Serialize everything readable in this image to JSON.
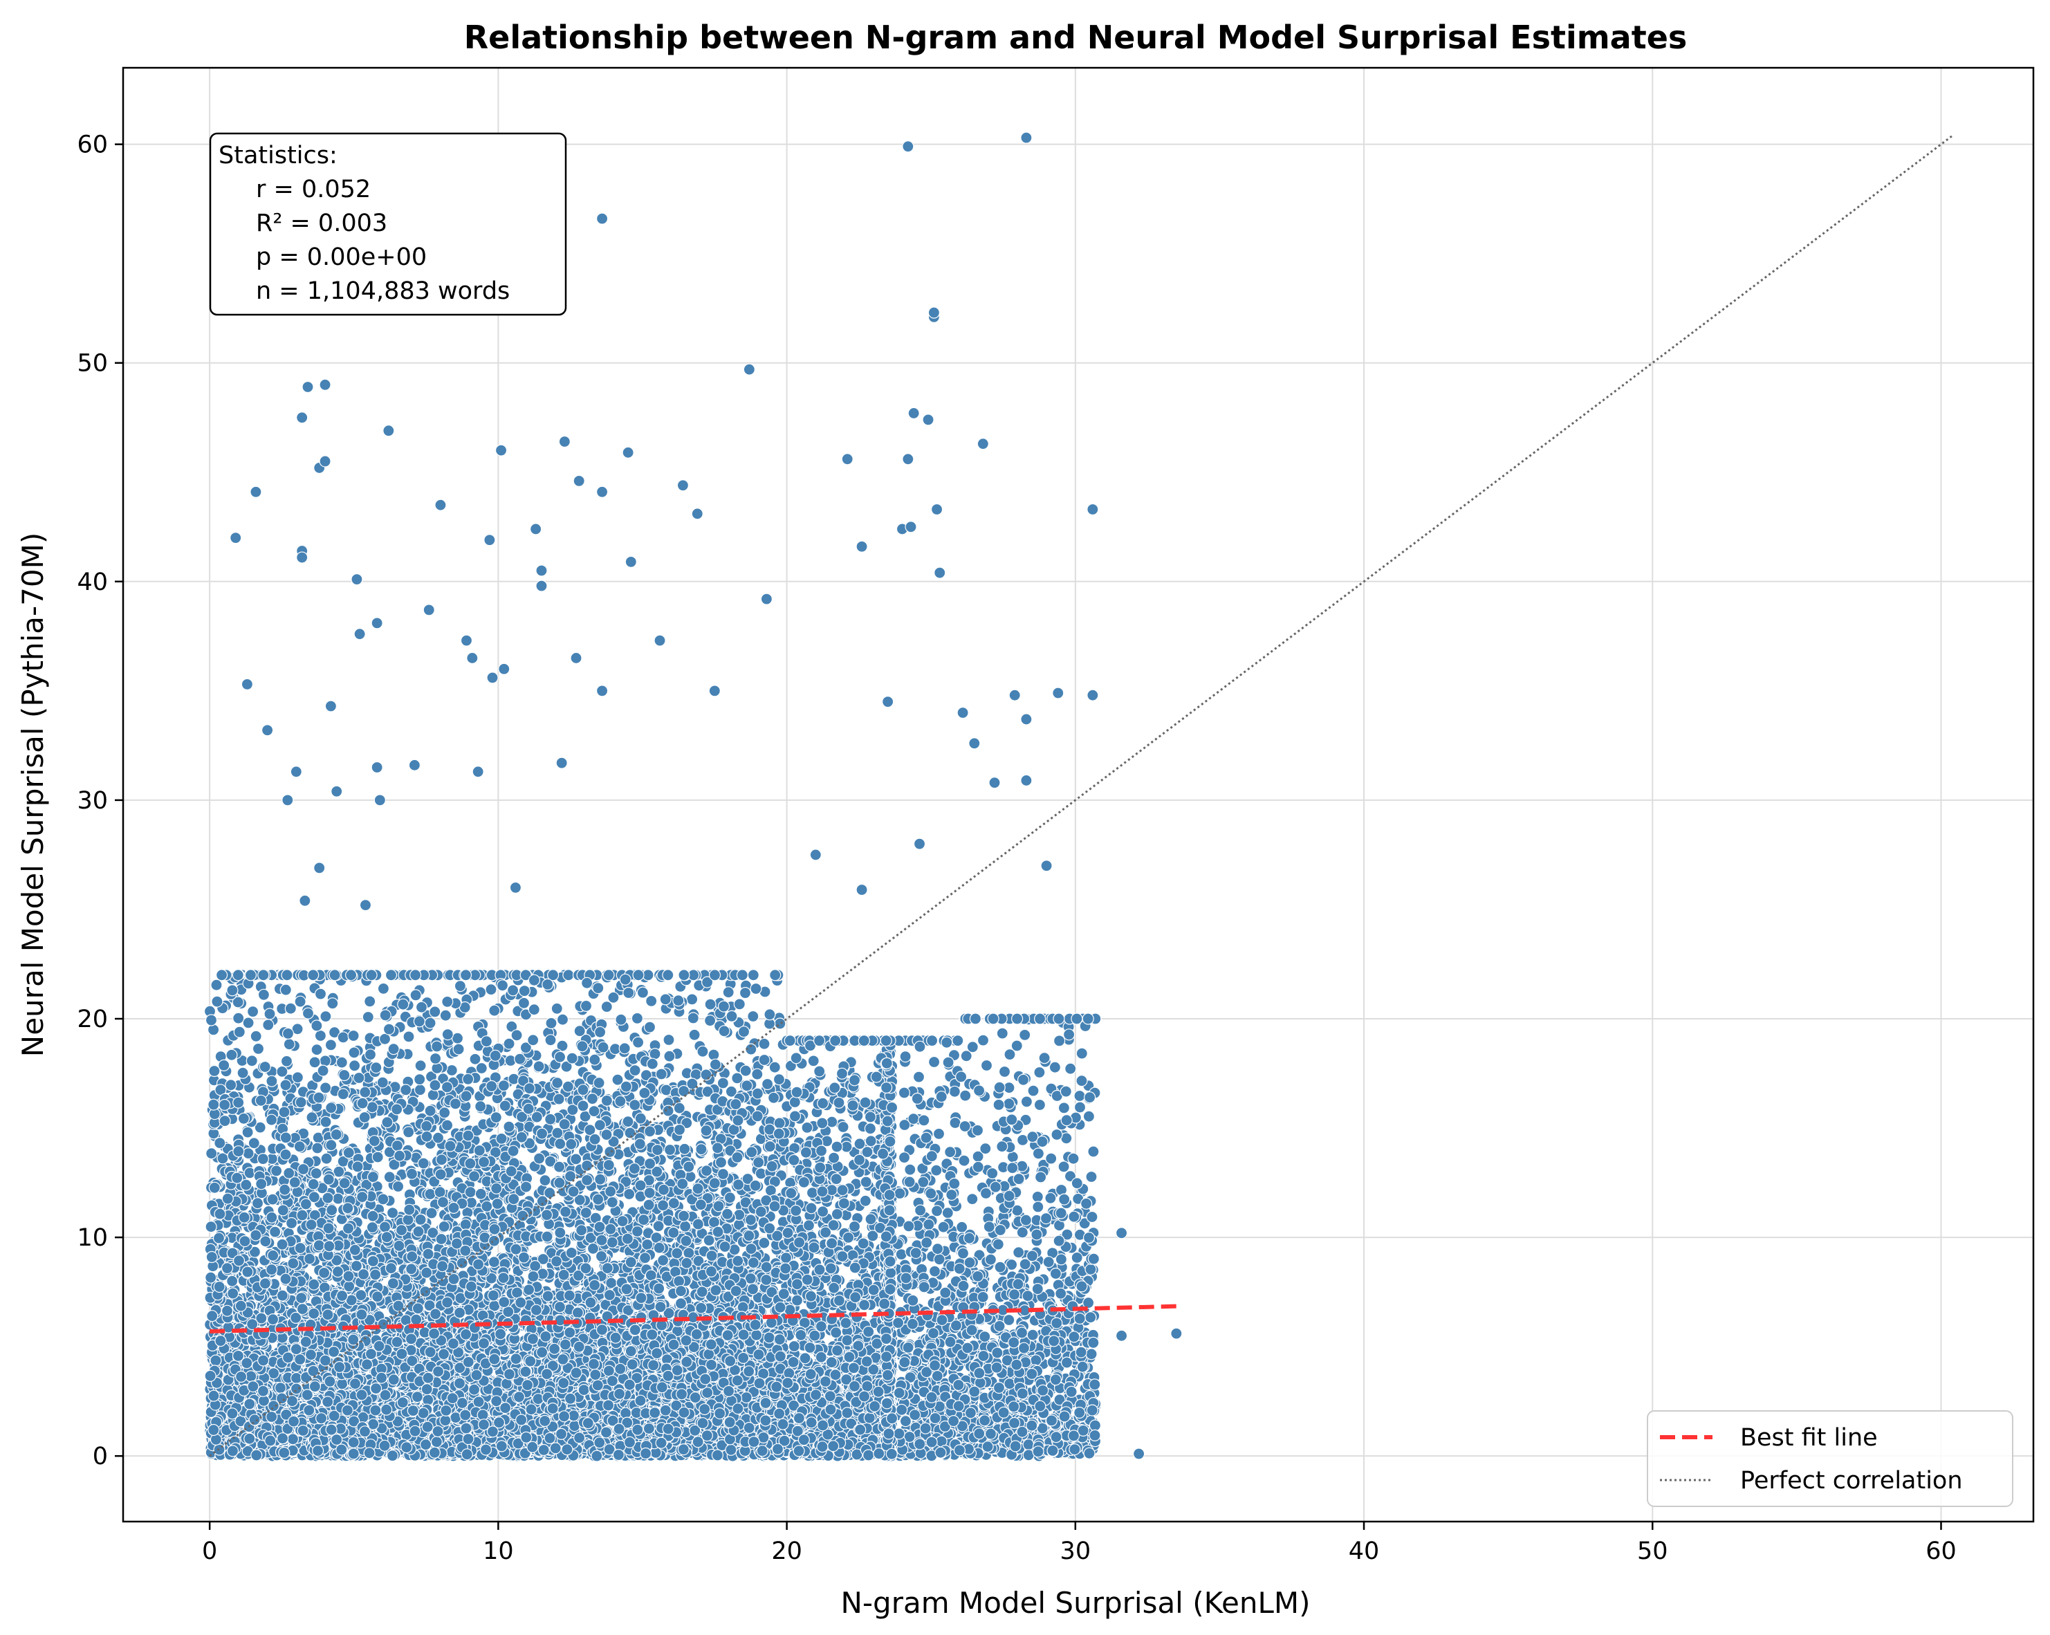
{
  "chart_data": {
    "type": "scatter",
    "title": "Relationship between N-gram and Neural Model Surprisal Estimates",
    "xlabel": "N-gram Model Surprisal (KenLM)",
    "ylabel": "Neural Model Surprisal (Pythia-70M)",
    "xlim": [
      -3,
      63.2
    ],
    "ylim": [
      -3,
      63.5
    ],
    "xticks": [
      0,
      10,
      20,
      30,
      40,
      50,
      60
    ],
    "yticks": [
      0,
      10,
      20,
      30,
      40,
      50,
      60
    ],
    "grid": true,
    "point_color": "#4682b4",
    "stats_box": {
      "header": "Statistics:",
      "lines": [
        "r = 0.052",
        "R² = 0.003",
        "p = 0.00e+00",
        "n = 1,104,883 words"
      ]
    },
    "series": [
      {
        "name": "Best fit line",
        "kind": "line",
        "style": "dashed",
        "color": "#ff3333",
        "x": [
          0,
          33.5
        ],
        "y": [
          5.7,
          6.85
        ]
      },
      {
        "name": "Perfect correlation",
        "kind": "line",
        "style": "dotted",
        "color": "#666666",
        "x": [
          0,
          60.4
        ],
        "y": [
          0,
          60.4
        ]
      }
    ],
    "legend": {
      "position": "lower-right",
      "entries": [
        "Best fit line",
        "Perfect correlation"
      ]
    },
    "outliers": {
      "x": [
        24.2,
        28.3,
        13.6,
        25.1,
        25.1,
        18.7,
        3.4,
        4.0,
        3.2,
        24.4,
        24.9,
        6.2,
        26.8,
        12.3,
        10.1,
        22.1,
        14.5,
        24.2,
        3.8,
        4.0,
        1.6,
        12.8,
        13.6,
        16.4,
        25.2,
        16.9,
        8.0,
        24.0,
        30.6,
        24.3,
        0.9,
        9.7,
        22.6,
        11.3,
        3.2,
        3.2,
        14.6,
        25.3,
        11.5,
        11.5,
        5.1,
        19.3,
        7.6,
        5.8,
        5.2,
        8.9,
        10.2,
        9.1,
        12.7,
        9.8,
        4.2,
        13.6,
        17.5,
        23.5,
        28.3,
        27.9,
        29.4,
        30.6,
        1.3,
        2.0,
        5.8,
        7.1,
        15.6,
        3.0,
        9.3,
        2.7,
        12.2,
        4.4,
        5.9,
        21.0,
        26.1,
        28.3,
        3.3,
        3.8,
        5.4,
        10.6,
        22.6,
        26.5,
        27.2,
        24.6,
        29.0,
        31.6,
        31.6,
        32.2,
        33.5
      ],
      "y": [
        59.9,
        60.3,
        56.6,
        52.1,
        52.3,
        49.7,
        48.9,
        49.0,
        47.5,
        47.7,
        47.4,
        46.9,
        46.3,
        46.4,
        46.0,
        45.6,
        45.9,
        45.6,
        45.2,
        45.5,
        44.1,
        44.6,
        44.1,
        44.4,
        43.3,
        43.1,
        43.5,
        42.4,
        43.3,
        42.5,
        42.0,
        41.9,
        41.6,
        42.4,
        41.4,
        41.1,
        40.9,
        40.4,
        40.5,
        39.8,
        40.1,
        39.2,
        38.7,
        38.1,
        37.6,
        37.3,
        36.0,
        36.5,
        36.5,
        35.6,
        34.3,
        35.0,
        35.0,
        34.5,
        33.7,
        34.8,
        34.9,
        34.8,
        35.3,
        33.2,
        31.5,
        31.6,
        37.3,
        31.3,
        31.3,
        30.0,
        31.7,
        30.4,
        30.0,
        27.5,
        34.0,
        30.9,
        25.4,
        26.9,
        25.2,
        26.0,
        25.9,
        32.6,
        30.8,
        28.0,
        27.0,
        10.2,
        5.5,
        0.1,
        5.6
      ]
    }
  }
}
